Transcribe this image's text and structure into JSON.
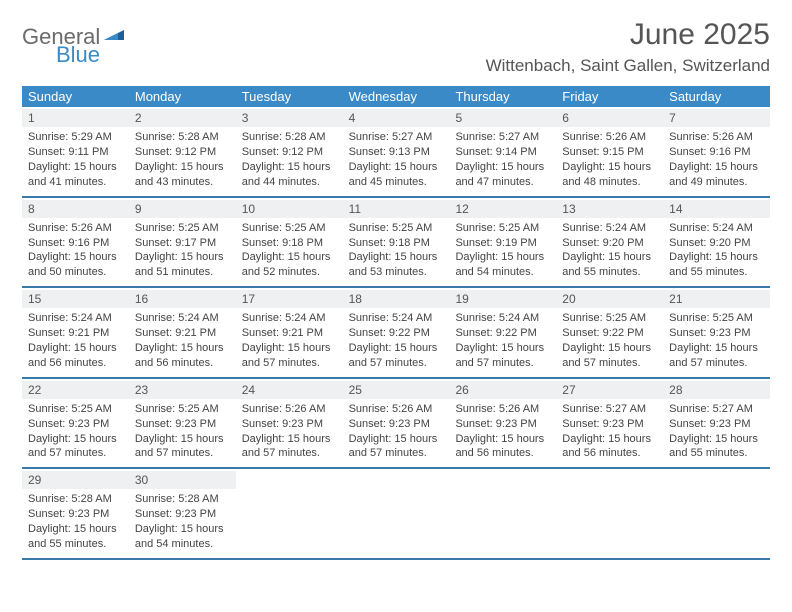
{
  "brand": {
    "word1": "General",
    "word2": "Blue"
  },
  "colors": {
    "header_bg": "#3a8ac7",
    "row_border": "#3a7aa8",
    "daynum_bg": "#eef0f1",
    "text": "#444444",
    "title": "#555555"
  },
  "title": "June 2025",
  "location": "Wittenbach, Saint Gallen, Switzerland",
  "weekdays": [
    "Sunday",
    "Monday",
    "Tuesday",
    "Wednesday",
    "Thursday",
    "Friday",
    "Saturday"
  ],
  "weeks": [
    [
      {
        "n": "1",
        "sunrise": "Sunrise: 5:29 AM",
        "sunset": "Sunset: 9:11 PM",
        "day1": "Daylight: 15 hours",
        "day2": "and 41 minutes."
      },
      {
        "n": "2",
        "sunrise": "Sunrise: 5:28 AM",
        "sunset": "Sunset: 9:12 PM",
        "day1": "Daylight: 15 hours",
        "day2": "and 43 minutes."
      },
      {
        "n": "3",
        "sunrise": "Sunrise: 5:28 AM",
        "sunset": "Sunset: 9:12 PM",
        "day1": "Daylight: 15 hours",
        "day2": "and 44 minutes."
      },
      {
        "n": "4",
        "sunrise": "Sunrise: 5:27 AM",
        "sunset": "Sunset: 9:13 PM",
        "day1": "Daylight: 15 hours",
        "day2": "and 45 minutes."
      },
      {
        "n": "5",
        "sunrise": "Sunrise: 5:27 AM",
        "sunset": "Sunset: 9:14 PM",
        "day1": "Daylight: 15 hours",
        "day2": "and 47 minutes."
      },
      {
        "n": "6",
        "sunrise": "Sunrise: 5:26 AM",
        "sunset": "Sunset: 9:15 PM",
        "day1": "Daylight: 15 hours",
        "day2": "and 48 minutes."
      },
      {
        "n": "7",
        "sunrise": "Sunrise: 5:26 AM",
        "sunset": "Sunset: 9:16 PM",
        "day1": "Daylight: 15 hours",
        "day2": "and 49 minutes."
      }
    ],
    [
      {
        "n": "8",
        "sunrise": "Sunrise: 5:26 AM",
        "sunset": "Sunset: 9:16 PM",
        "day1": "Daylight: 15 hours",
        "day2": "and 50 minutes."
      },
      {
        "n": "9",
        "sunrise": "Sunrise: 5:25 AM",
        "sunset": "Sunset: 9:17 PM",
        "day1": "Daylight: 15 hours",
        "day2": "and 51 minutes."
      },
      {
        "n": "10",
        "sunrise": "Sunrise: 5:25 AM",
        "sunset": "Sunset: 9:18 PM",
        "day1": "Daylight: 15 hours",
        "day2": "and 52 minutes."
      },
      {
        "n": "11",
        "sunrise": "Sunrise: 5:25 AM",
        "sunset": "Sunset: 9:18 PM",
        "day1": "Daylight: 15 hours",
        "day2": "and 53 minutes."
      },
      {
        "n": "12",
        "sunrise": "Sunrise: 5:25 AM",
        "sunset": "Sunset: 9:19 PM",
        "day1": "Daylight: 15 hours",
        "day2": "and 54 minutes."
      },
      {
        "n": "13",
        "sunrise": "Sunrise: 5:24 AM",
        "sunset": "Sunset: 9:20 PM",
        "day1": "Daylight: 15 hours",
        "day2": "and 55 minutes."
      },
      {
        "n": "14",
        "sunrise": "Sunrise: 5:24 AM",
        "sunset": "Sunset: 9:20 PM",
        "day1": "Daylight: 15 hours",
        "day2": "and 55 minutes."
      }
    ],
    [
      {
        "n": "15",
        "sunrise": "Sunrise: 5:24 AM",
        "sunset": "Sunset: 9:21 PM",
        "day1": "Daylight: 15 hours",
        "day2": "and 56 minutes."
      },
      {
        "n": "16",
        "sunrise": "Sunrise: 5:24 AM",
        "sunset": "Sunset: 9:21 PM",
        "day1": "Daylight: 15 hours",
        "day2": "and 56 minutes."
      },
      {
        "n": "17",
        "sunrise": "Sunrise: 5:24 AM",
        "sunset": "Sunset: 9:21 PM",
        "day1": "Daylight: 15 hours",
        "day2": "and 57 minutes."
      },
      {
        "n": "18",
        "sunrise": "Sunrise: 5:24 AM",
        "sunset": "Sunset: 9:22 PM",
        "day1": "Daylight: 15 hours",
        "day2": "and 57 minutes."
      },
      {
        "n": "19",
        "sunrise": "Sunrise: 5:24 AM",
        "sunset": "Sunset: 9:22 PM",
        "day1": "Daylight: 15 hours",
        "day2": "and 57 minutes."
      },
      {
        "n": "20",
        "sunrise": "Sunrise: 5:25 AM",
        "sunset": "Sunset: 9:22 PM",
        "day1": "Daylight: 15 hours",
        "day2": "and 57 minutes."
      },
      {
        "n": "21",
        "sunrise": "Sunrise: 5:25 AM",
        "sunset": "Sunset: 9:23 PM",
        "day1": "Daylight: 15 hours",
        "day2": "and 57 minutes."
      }
    ],
    [
      {
        "n": "22",
        "sunrise": "Sunrise: 5:25 AM",
        "sunset": "Sunset: 9:23 PM",
        "day1": "Daylight: 15 hours",
        "day2": "and 57 minutes."
      },
      {
        "n": "23",
        "sunrise": "Sunrise: 5:25 AM",
        "sunset": "Sunset: 9:23 PM",
        "day1": "Daylight: 15 hours",
        "day2": "and 57 minutes."
      },
      {
        "n": "24",
        "sunrise": "Sunrise: 5:26 AM",
        "sunset": "Sunset: 9:23 PM",
        "day1": "Daylight: 15 hours",
        "day2": "and 57 minutes."
      },
      {
        "n": "25",
        "sunrise": "Sunrise: 5:26 AM",
        "sunset": "Sunset: 9:23 PM",
        "day1": "Daylight: 15 hours",
        "day2": "and 57 minutes."
      },
      {
        "n": "26",
        "sunrise": "Sunrise: 5:26 AM",
        "sunset": "Sunset: 9:23 PM",
        "day1": "Daylight: 15 hours",
        "day2": "and 56 minutes."
      },
      {
        "n": "27",
        "sunrise": "Sunrise: 5:27 AM",
        "sunset": "Sunset: 9:23 PM",
        "day1": "Daylight: 15 hours",
        "day2": "and 56 minutes."
      },
      {
        "n": "28",
        "sunrise": "Sunrise: 5:27 AM",
        "sunset": "Sunset: 9:23 PM",
        "day1": "Daylight: 15 hours",
        "day2": "and 55 minutes."
      }
    ],
    [
      {
        "n": "29",
        "sunrise": "Sunrise: 5:28 AM",
        "sunset": "Sunset: 9:23 PM",
        "day1": "Daylight: 15 hours",
        "day2": "and 55 minutes."
      },
      {
        "n": "30",
        "sunrise": "Sunrise: 5:28 AM",
        "sunset": "Sunset: 9:23 PM",
        "day1": "Daylight: 15 hours",
        "day2": "and 54 minutes."
      },
      {
        "empty": true
      },
      {
        "empty": true
      },
      {
        "empty": true
      },
      {
        "empty": true
      },
      {
        "empty": true
      }
    ]
  ]
}
